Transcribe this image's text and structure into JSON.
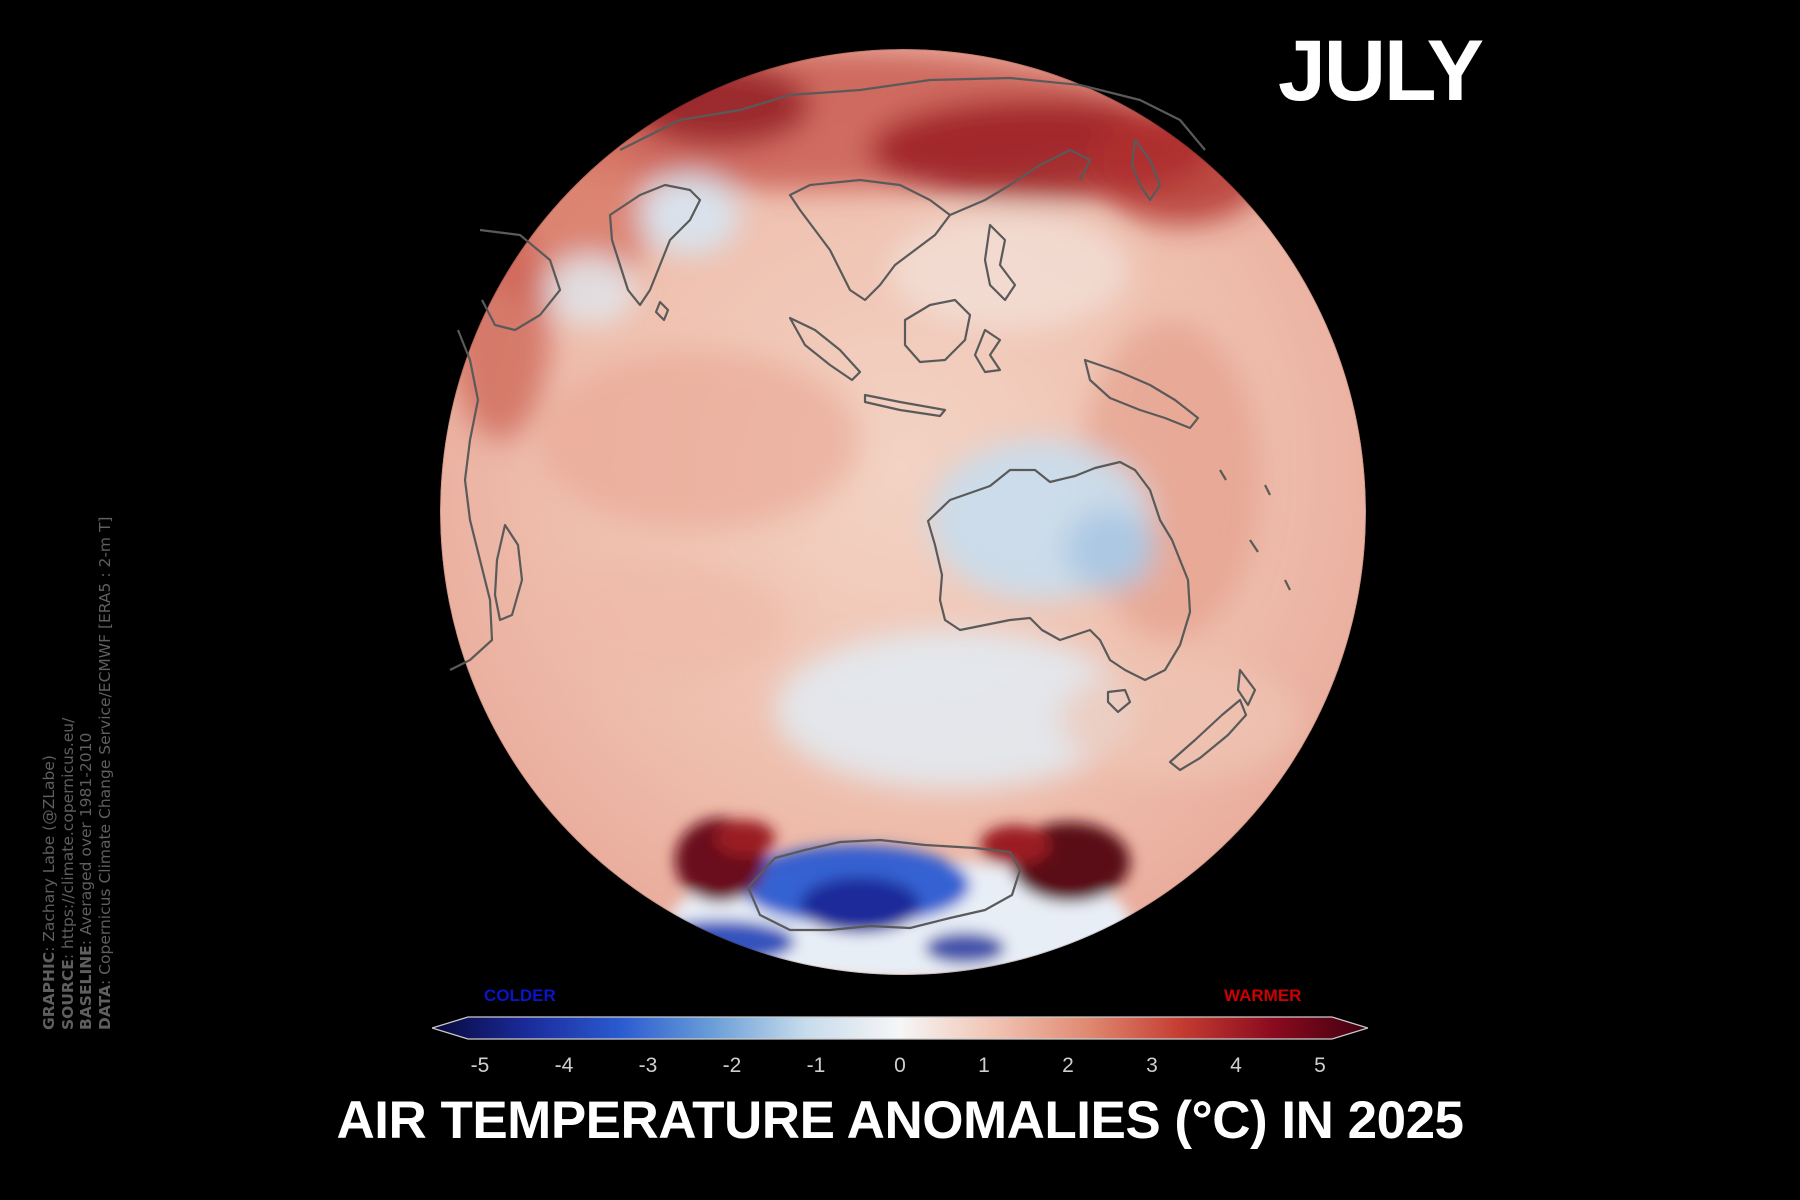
{
  "month": "JULY",
  "title": "AIR TEMPERATURE ANOMALIES (°C) IN 2025",
  "credits": [
    {
      "key": "GRAPHIC",
      "value": ": Zachary Labe (@ZLabe)"
    },
    {
      "key": "SOURCE",
      "value": ": https://climate.copernicus.eu/"
    },
    {
      "key": "BASELINE",
      "value": ": Averaged over 1981-2010"
    },
    {
      "key": "DATA",
      "value": ": Copernicus Climate Change Service/ECMWF [ERA5 : 2-m T]"
    }
  ],
  "colorbar": {
    "colder_label": "COLDER",
    "warmer_label": "WARMER",
    "ticks": [
      "-5",
      "-4",
      "-3",
      "-2",
      "-1",
      "0",
      "1",
      "2",
      "3",
      "4",
      "5"
    ],
    "range": [
      -5,
      5
    ],
    "colors": [
      "#08083a",
      "#1a2a9a",
      "#2a5ad0",
      "#6a9ed8",
      "#c8dcec",
      "#f6f6f6",
      "#f1c4b4",
      "#e08a72",
      "#c43c32",
      "#8a0a1e",
      "#400010"
    ]
  },
  "map": {
    "projection": "orthographic",
    "center": "Indian Ocean / Australia",
    "colors": {
      "background_warm": "#f2c3b2",
      "strong_warm": "#7a0e1a",
      "cold": "#2a5ad0",
      "coast": "#5a5a5a"
    }
  }
}
